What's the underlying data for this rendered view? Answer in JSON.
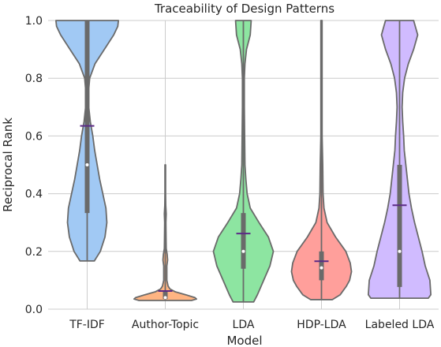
{
  "chart_data": {
    "type": "violin",
    "title": "Traceability of Design Patterns",
    "xlabel": "Model",
    "ylabel": "Reciprocal Rank",
    "ylim": [
      0,
      1
    ],
    "yticks": [
      "0.0",
      "0.2",
      "0.4",
      "0.6",
      "0.8",
      "1.0"
    ],
    "grid": true,
    "categories": [
      "TF-IDF",
      "Author-Topic",
      "LDA",
      "HDP-LDA",
      "Labeled LDA"
    ],
    "colors": [
      "#a1c9f4",
      "#ffb482",
      "#8de5a1",
      "#ff9f9b",
      "#d0bbff"
    ],
    "mean_marker_color": "#5b2a86",
    "outline_color": "#6a6a6a",
    "series": [
      {
        "name": "TF-IDF",
        "min": 0.167,
        "max": 1.0,
        "q1": 0.333,
        "median": 0.5,
        "q3": 1.0,
        "mean": 0.635,
        "density": [
          [
            0.167,
            0.23
          ],
          [
            0.2,
            0.42
          ],
          [
            0.25,
            0.57
          ],
          [
            0.3,
            0.63
          ],
          [
            0.35,
            0.6
          ],
          [
            0.4,
            0.5
          ],
          [
            0.45,
            0.4
          ],
          [
            0.5,
            0.32
          ],
          [
            0.55,
            0.24
          ],
          [
            0.6,
            0.18
          ],
          [
            0.65,
            0.1
          ],
          [
            0.7,
            0.05
          ],
          [
            0.75,
            0.04
          ],
          [
            0.8,
            0.08
          ],
          [
            0.85,
            0.25
          ],
          [
            0.9,
            0.55
          ],
          [
            0.95,
            0.85
          ],
          [
            0.98,
            0.98
          ],
          [
            1.0,
            1.0
          ]
        ]
      },
      {
        "name": "Author-Topic",
        "min": 0.03,
        "max": 0.5,
        "q1": 0.035,
        "median": 0.04,
        "q3": 0.065,
        "mean": 0.063,
        "density": [
          [
            0.03,
            0.84
          ],
          [
            0.035,
            1.0
          ],
          [
            0.04,
            0.95
          ],
          [
            0.05,
            0.65
          ],
          [
            0.06,
            0.32
          ],
          [
            0.07,
            0.15
          ],
          [
            0.08,
            0.09
          ],
          [
            0.1,
            0.05
          ],
          [
            0.15,
            0.05
          ],
          [
            0.17,
            0.075
          ],
          [
            0.19,
            0.06
          ],
          [
            0.21,
            0.03
          ],
          [
            0.25,
            0.025
          ],
          [
            0.3,
            0.02
          ],
          [
            0.33,
            0.03
          ],
          [
            0.36,
            0.015
          ],
          [
            0.4,
            0.01
          ],
          [
            0.45,
            0.01
          ],
          [
            0.5,
            0.01
          ]
        ]
      },
      {
        "name": "LDA",
        "min": 0.025,
        "max": 1.0,
        "q1": 0.14,
        "median": 0.2,
        "q3": 0.333,
        "mean": 0.262,
        "density": [
          [
            0.025,
            0.33
          ],
          [
            0.05,
            0.45
          ],
          [
            0.1,
            0.65
          ],
          [
            0.15,
            0.85
          ],
          [
            0.2,
            0.96
          ],
          [
            0.25,
            0.8
          ],
          [
            0.3,
            0.5
          ],
          [
            0.35,
            0.22
          ],
          [
            0.4,
            0.12
          ],
          [
            0.45,
            0.08
          ],
          [
            0.5,
            0.05
          ],
          [
            0.6,
            0.04
          ],
          [
            0.7,
            0.03
          ],
          [
            0.8,
            0.03
          ],
          [
            0.85,
            0.05
          ],
          [
            0.9,
            0.1
          ],
          [
            0.95,
            0.22
          ],
          [
            1.0,
            0.25
          ]
        ]
      },
      {
        "name": "HDP-LDA",
        "min": 0.033,
        "max": 1.0,
        "q1": 0.1,
        "median": 0.143,
        "q3": 0.2,
        "mean": 0.166,
        "density": [
          [
            0.033,
            0.35
          ],
          [
            0.05,
            0.6
          ],
          [
            0.08,
            0.8
          ],
          [
            0.1,
            0.9
          ],
          [
            0.13,
            0.96
          ],
          [
            0.16,
            0.92
          ],
          [
            0.2,
            0.78
          ],
          [
            0.25,
            0.45
          ],
          [
            0.3,
            0.18
          ],
          [
            0.35,
            0.08
          ],
          [
            0.4,
            0.05
          ],
          [
            0.5,
            0.04
          ],
          [
            0.55,
            0.03
          ],
          [
            0.6,
            0.02
          ],
          [
            0.7,
            0.02
          ],
          [
            0.8,
            0.02
          ],
          [
            0.9,
            0.02
          ],
          [
            1.0,
            0.02
          ]
        ]
      },
      {
        "name": "Labeled LDA",
        "min": 0.038,
        "max": 1.0,
        "q1": 0.077,
        "median": 0.2,
        "q3": 0.5,
        "mean": 0.36,
        "density": [
          [
            0.038,
            0.92
          ],
          [
            0.05,
            1.0
          ],
          [
            0.1,
            0.97
          ],
          [
            0.15,
            0.82
          ],
          [
            0.2,
            0.72
          ],
          [
            0.25,
            0.6
          ],
          [
            0.3,
            0.48
          ],
          [
            0.35,
            0.38
          ],
          [
            0.4,
            0.3
          ],
          [
            0.45,
            0.25
          ],
          [
            0.5,
            0.2
          ],
          [
            0.55,
            0.15
          ],
          [
            0.6,
            0.13
          ],
          [
            0.65,
            0.1
          ],
          [
            0.7,
            0.08
          ],
          [
            0.75,
            0.1
          ],
          [
            0.8,
            0.16
          ],
          [
            0.85,
            0.28
          ],
          [
            0.9,
            0.45
          ],
          [
            0.95,
            0.58
          ],
          [
            1.0,
            0.45
          ]
        ]
      }
    ]
  }
}
